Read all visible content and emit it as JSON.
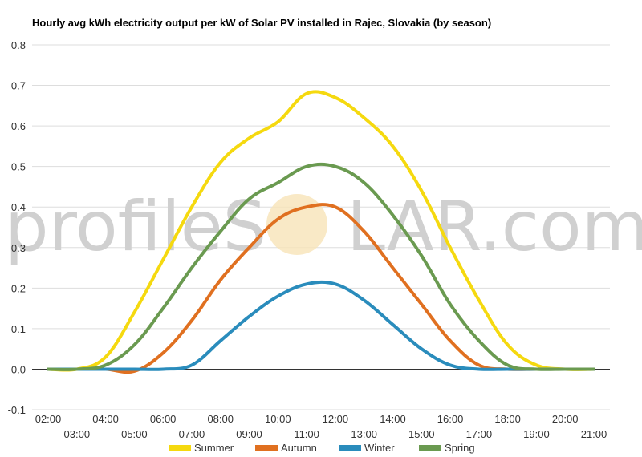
{
  "chart_data": {
    "type": "line",
    "title": "Hourly avg kWh electricity output per kW of Solar PV installed in Rajec, Slovakia (by season)",
    "xlabel": "",
    "ylabel": "",
    "ylim": [
      -0.1,
      0.8
    ],
    "yticks": [
      "-0.1",
      "0.0",
      "0.1",
      "0.2",
      "0.3",
      "0.4",
      "0.5",
      "0.6",
      "0.7",
      "0.8"
    ],
    "categories": [
      "02:00",
      "03:00",
      "04:00",
      "05:00",
      "06:00",
      "07:00",
      "08:00",
      "09:00",
      "10:00",
      "11:00",
      "12:00",
      "13:00",
      "14:00",
      "15:00",
      "16:00",
      "17:00",
      "18:00",
      "19:00",
      "20:00",
      "21:00"
    ],
    "grid": true,
    "legend": "bottom",
    "watermark": {
      "text_before": "profileS",
      "text_after": "LAR.com",
      "sun_color": "#f7e4b8"
    },
    "series": [
      {
        "name": "Summer",
        "color": "#f5d90f",
        "values": [
          0.0,
          0.0,
          0.03,
          0.14,
          0.27,
          0.4,
          0.51,
          0.57,
          0.61,
          0.68,
          0.67,
          0.62,
          0.55,
          0.44,
          0.3,
          0.17,
          0.06,
          0.01,
          0.0,
          0.0
        ]
      },
      {
        "name": "Autumn",
        "color": "#e07020",
        "values": [
          0.0,
          0.0,
          0.0,
          -0.005,
          0.04,
          0.12,
          0.22,
          0.3,
          0.37,
          0.4,
          0.4,
          0.34,
          0.25,
          0.16,
          0.07,
          0.01,
          0.0,
          0.0,
          0.0,
          0.0
        ]
      },
      {
        "name": "Winter",
        "color": "#2a8cbc",
        "values": [
          0.0,
          0.0,
          0.0,
          0.0,
          0.0,
          0.01,
          0.07,
          0.13,
          0.18,
          0.21,
          0.21,
          0.17,
          0.11,
          0.05,
          0.01,
          0.0,
          0.0,
          0.0,
          0.0,
          0.0
        ]
      },
      {
        "name": "Spring",
        "color": "#6a9a50",
        "values": [
          0.0,
          0.0,
          0.01,
          0.06,
          0.15,
          0.25,
          0.34,
          0.42,
          0.46,
          0.5,
          0.5,
          0.46,
          0.38,
          0.28,
          0.16,
          0.07,
          0.01,
          0.0,
          0.0,
          0.0
        ]
      }
    ]
  }
}
